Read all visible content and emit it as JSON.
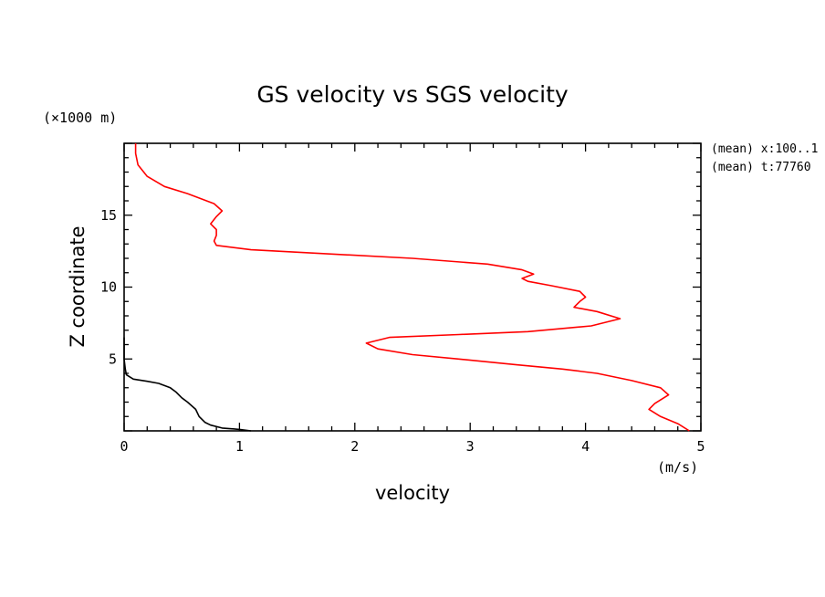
{
  "chart_data": {
    "type": "line",
    "title": "GS velocity vs SGS velocity",
    "xlabel": "velocity",
    "ylabel": "Z coordinate",
    "x_unit": "(m/s)",
    "y_unit": "(×1000 m)",
    "xlim": [
      0,
      5
    ],
    "ylim": [
      0,
      20
    ],
    "x_ticks": [
      "0",
      "1",
      "2",
      "3",
      "4",
      "5"
    ],
    "y_ticks": [
      "5",
      "10",
      "15"
    ],
    "annotations": [
      "(mean) x:100..1",
      "(mean) t:77760"
    ],
    "grid": false,
    "series": [
      {
        "color": "#ff0000",
        "points": [
          [
            4.9,
            0.0
          ],
          [
            4.8,
            0.5
          ],
          [
            4.65,
            1.0
          ],
          [
            4.55,
            1.5
          ],
          [
            4.6,
            1.9
          ],
          [
            4.72,
            2.5
          ],
          [
            4.65,
            3.0
          ],
          [
            4.4,
            3.5
          ],
          [
            4.1,
            4.0
          ],
          [
            3.8,
            4.3
          ],
          [
            3.4,
            4.6
          ],
          [
            2.9,
            5.0
          ],
          [
            2.5,
            5.3
          ],
          [
            2.2,
            5.7
          ],
          [
            2.1,
            6.1
          ],
          [
            2.3,
            6.5
          ],
          [
            2.9,
            6.7
          ],
          [
            3.5,
            6.9
          ],
          [
            4.05,
            7.3
          ],
          [
            4.3,
            7.8
          ],
          [
            4.1,
            8.3
          ],
          [
            3.9,
            8.6
          ],
          [
            3.95,
            9.0
          ],
          [
            4.0,
            9.3
          ],
          [
            3.95,
            9.7
          ],
          [
            3.7,
            10.1
          ],
          [
            3.5,
            10.4
          ],
          [
            3.45,
            10.6
          ],
          [
            3.55,
            10.9
          ],
          [
            3.45,
            11.2
          ],
          [
            3.15,
            11.6
          ],
          [
            2.5,
            12.0
          ],
          [
            1.8,
            12.3
          ],
          [
            1.1,
            12.6
          ],
          [
            0.8,
            12.9
          ],
          [
            0.78,
            13.2
          ],
          [
            0.8,
            13.6
          ],
          [
            0.8,
            14.0
          ],
          [
            0.75,
            14.4
          ],
          [
            0.8,
            14.9
          ],
          [
            0.85,
            15.3
          ],
          [
            0.78,
            15.8
          ],
          [
            0.55,
            16.5
          ],
          [
            0.35,
            17.0
          ],
          [
            0.2,
            17.7
          ],
          [
            0.12,
            18.5
          ],
          [
            0.1,
            19.3
          ],
          [
            0.1,
            20.0
          ]
        ]
      },
      {
        "color": "#000000",
        "points": [
          [
            1.1,
            0.0
          ],
          [
            1.0,
            0.1
          ],
          [
            0.85,
            0.2
          ],
          [
            0.75,
            0.4
          ],
          [
            0.7,
            0.6
          ],
          [
            0.65,
            1.0
          ],
          [
            0.62,
            1.5
          ],
          [
            0.55,
            2.0
          ],
          [
            0.5,
            2.3
          ],
          [
            0.45,
            2.7
          ],
          [
            0.4,
            3.0
          ],
          [
            0.3,
            3.3
          ],
          [
            0.2,
            3.45
          ],
          [
            0.08,
            3.6
          ],
          [
            0.02,
            3.9
          ],
          [
            0.01,
            4.3
          ],
          [
            0.0,
            5.0
          ],
          [
            0.0,
            6.0
          ],
          [
            0.0,
            6.5
          ]
        ]
      }
    ]
  }
}
